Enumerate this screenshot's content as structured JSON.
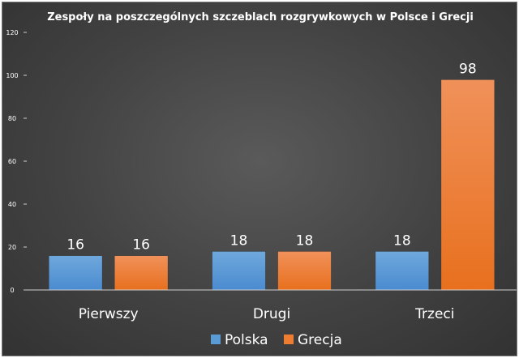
{
  "chart_data": {
    "type": "bar",
    "title": "Zespoły na poszczególnych szczeblach rozgrywkowych w Polsce i Grecji",
    "categories": [
      "Pierwszy",
      "Drugi",
      "Trzeci"
    ],
    "series": [
      {
        "name": "Polska",
        "values": [
          16,
          18,
          18
        ],
        "color": "#5b9bd5"
      },
      {
        "name": "Grecja",
        "values": [
          16,
          18,
          98
        ],
        "color": "#ed7d31"
      }
    ],
    "ylim": [
      0,
      120
    ],
    "yticks": [
      0,
      20,
      40,
      60,
      80,
      100,
      120
    ],
    "xlabel": "",
    "ylabel": "",
    "grid": false,
    "legend_position": "bottom",
    "data_labels": true,
    "colors": {
      "background": "#404040",
      "text": "#ffffff",
      "axis": "#bfbfbf"
    }
  }
}
